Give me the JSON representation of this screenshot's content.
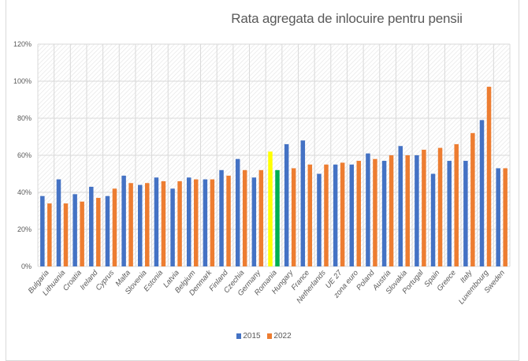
{
  "chart_data": {
    "type": "bar",
    "title": "Rata agregata de inlocuire pentru pensii",
    "xlabel": "",
    "ylabel": "",
    "ylim": [
      0,
      120
    ],
    "yticks": [
      "0%",
      "20%",
      "40%",
      "60%",
      "80%",
      "100%",
      "120%"
    ],
    "ytick_values": [
      0,
      20,
      40,
      60,
      80,
      100,
      120
    ],
    "grid": true,
    "legend_position": "bottom",
    "categories": [
      "Bulgaria",
      "Lithuania",
      "Croatia",
      "Ireland",
      "Cyprus",
      "Malta",
      "Slovenia",
      "Estonia",
      "Latvia",
      "Belgium",
      "Denmark",
      "Finland",
      "Czechia",
      "Germany",
      "Romania",
      "Hungary",
      "France",
      "Netherlands",
      "UE 27",
      "zona euro",
      "Poland",
      "Austria",
      "Slovakia",
      "Portugal",
      "Spain",
      "Greece",
      "Italy",
      "Luxembourg",
      "Sweden"
    ],
    "series": [
      {
        "name": "2015",
        "color": "#4472C4",
        "values": [
          38,
          47,
          39,
          43,
          38,
          49,
          44,
          48,
          42,
          48,
          47,
          52,
          58,
          48,
          62,
          66,
          68,
          50,
          55,
          55,
          61,
          57,
          65,
          60,
          50,
          57,
          57,
          79,
          53
        ]
      },
      {
        "name": "2022",
        "color": "#ED7D31",
        "values": [
          34,
          34,
          35,
          37,
          42,
          45,
          45,
          46,
          46,
          47,
          47,
          49,
          52,
          52,
          52,
          53,
          55,
          55,
          56,
          57,
          58,
          60,
          60,
          63,
          64,
          66,
          72,
          97,
          53
        ]
      }
    ],
    "highlight": {
      "category": "Romania",
      "colors": {
        "2015": "#FFFF00",
        "2022": "#00B050"
      }
    }
  },
  "legend": {
    "items": [
      {
        "label": "2015",
        "color": "#4472C4"
      },
      {
        "label": "2022",
        "color": "#ED7D31"
      }
    ]
  }
}
